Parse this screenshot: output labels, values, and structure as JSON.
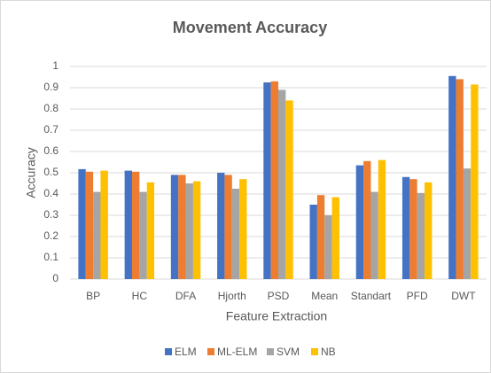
{
  "chart_data": {
    "type": "bar",
    "title": "Movement Accuracy",
    "x_label": "Feature Extraction",
    "y_label": "Accuracy",
    "categories": [
      "BP",
      "HC",
      "DFA",
      "Hjorth",
      "PSD",
      "Mean",
      "Standart",
      "PFD",
      "DWT"
    ],
    "series": [
      {
        "name": "ELM",
        "color": "#4472c4",
        "values": [
          0.517,
          0.51,
          0.49,
          0.5,
          0.925,
          0.35,
          0.535,
          0.48,
          0.955
        ]
      },
      {
        "name": "ML-ELM",
        "color": "#ed7d31",
        "values": [
          0.505,
          0.505,
          0.49,
          0.49,
          0.93,
          0.395,
          0.555,
          0.47,
          0.94
        ]
      },
      {
        "name": "SVM",
        "color": "#a5a5a5",
        "values": [
          0.41,
          0.41,
          0.45,
          0.425,
          0.89,
          0.3,
          0.41,
          0.405,
          0.52
        ]
      },
      {
        "name": "NB",
        "color": "#ffc000",
        "values": [
          0.51,
          0.455,
          0.46,
          0.47,
          0.84,
          0.385,
          0.56,
          0.455,
          0.915
        ]
      }
    ],
    "ylim": [
      0,
      1
    ],
    "yticks": [
      0,
      0.1,
      0.2,
      0.3,
      0.4,
      0.5,
      0.6,
      0.7,
      0.8,
      0.9,
      1
    ],
    "grid": true,
    "legend": "bottom"
  }
}
